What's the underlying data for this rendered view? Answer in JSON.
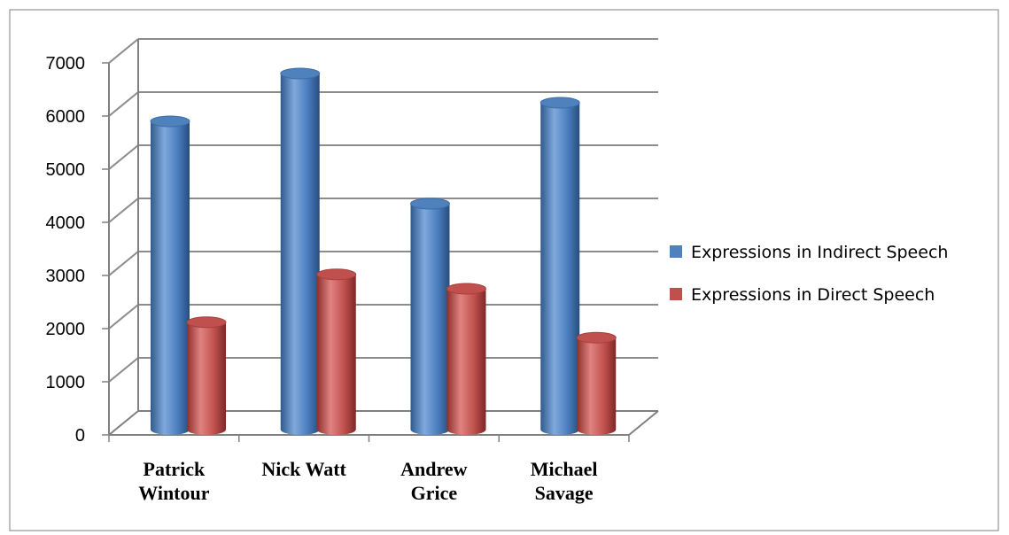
{
  "chart_data": {
    "type": "bar",
    "style": "3d-cylinder",
    "categories": [
      [
        "Patrick",
        "Wintour"
      ],
      [
        "Nick Watt"
      ],
      [
        "Andrew",
        "Grice"
      ],
      [
        "Michael",
        "Savage"
      ]
    ],
    "series": [
      {
        "name": "Expressions in Indirect Speech",
        "color": "#4F81BD",
        "values": [
          5600,
          6500,
          4050,
          5950
        ]
      },
      {
        "name": "Expressions in Direct Speech",
        "color": "#C0504D",
        "values": [
          1820,
          2720,
          2450,
          1530
        ]
      }
    ],
    "ylim": [
      0,
      7000
    ],
    "yticks": [
      "0",
      "1000",
      "2000",
      "3000",
      "4000",
      "5000",
      "6000",
      "7000"
    ],
    "grid": true,
    "legend": "right",
    "title": "",
    "xlabel": "",
    "ylabel": ""
  }
}
